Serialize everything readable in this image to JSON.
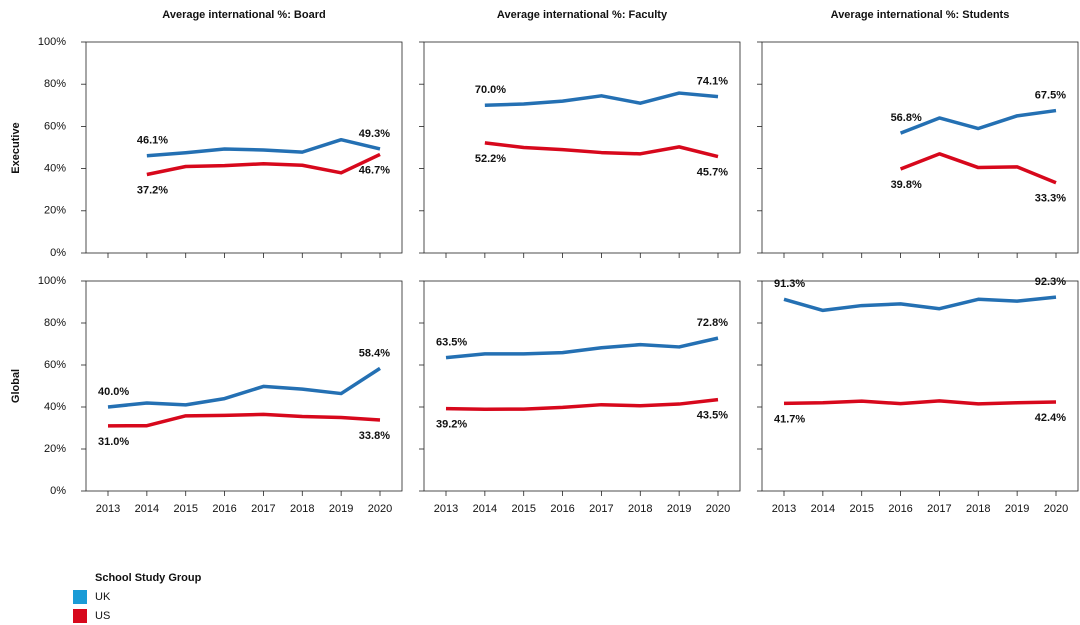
{
  "chart_data": [
    {
      "type": "line",
      "title": "Average international %: Board",
      "ylim": [
        0,
        100
      ],
      "yticks": [
        {
          "value": 0,
          "label": "0%"
        },
        {
          "value": 20,
          "label": "20%"
        },
        {
          "value": 40,
          "label": "40%"
        },
        {
          "value": 60,
          "label": "60%"
        },
        {
          "value": 80,
          "label": "80%"
        },
        {
          "value": 100,
          "label": "100%"
        }
      ],
      "series": [
        {
          "name": "UK",
          "color": "#2470b3",
          "values": [
            null,
            46.1,
            47.5,
            49.3,
            48.8,
            47.8,
            53.7,
            49.3
          ],
          "value_labels": [
            null,
            "46.1%",
            null,
            null,
            null,
            null,
            null,
            "49.3%"
          ]
        },
        {
          "name": "US",
          "color": "#d7081c",
          "values": [
            null,
            37.2,
            41.0,
            41.4,
            42.3,
            41.6,
            38.0,
            46.7
          ],
          "value_labels": [
            null,
            "37.2%",
            null,
            null,
            null,
            null,
            null,
            "46.7%"
          ]
        }
      ]
    },
    {
      "type": "line",
      "title": "Average international %: Faculty",
      "ylim": [
        0,
        100
      ],
      "series": [
        {
          "name": "UK",
          "color": "#2470b3",
          "values": [
            null,
            70.0,
            70.6,
            72.0,
            74.5,
            71.0,
            75.8,
            74.1
          ],
          "value_labels": [
            null,
            "70.0%",
            null,
            null,
            null,
            null,
            null,
            "74.1%"
          ]
        },
        {
          "name": "US",
          "color": "#d7081c",
          "values": [
            null,
            52.2,
            50.0,
            49.0,
            47.6,
            47.0,
            50.3,
            45.7
          ],
          "value_labels": [
            null,
            "52.2%",
            null,
            null,
            null,
            null,
            null,
            "45.7%"
          ]
        }
      ]
    },
    {
      "type": "line",
      "title": "Average international %: Students",
      "ylim": [
        0,
        100
      ],
      "series": [
        {
          "name": "UK",
          "color": "#2470b3",
          "values": [
            null,
            null,
            null,
            56.8,
            64.0,
            59.0,
            65.0,
            67.5
          ],
          "value_labels": [
            null,
            null,
            null,
            "56.8%",
            null,
            null,
            null,
            "67.5%"
          ]
        },
        {
          "name": "US",
          "color": "#d7081c",
          "values": [
            null,
            null,
            null,
            39.8,
            47.0,
            40.5,
            40.8,
            33.3
          ],
          "value_labels": [
            null,
            null,
            null,
            "39.8%",
            null,
            null,
            null,
            "33.3%"
          ]
        }
      ]
    },
    {
      "type": "line",
      "ylim": [
        0,
        100
      ],
      "yticks": [
        {
          "value": 0,
          "label": "0%"
        },
        {
          "value": 20,
          "label": "20%"
        },
        {
          "value": 40,
          "label": "40%"
        },
        {
          "value": 60,
          "label": "60%"
        },
        {
          "value": 80,
          "label": "80%"
        },
        {
          "value": 100,
          "label": "100%"
        }
      ],
      "categories": [
        "2013",
        "2014",
        "2015",
        "2016",
        "2017",
        "2018",
        "2019",
        "2020"
      ],
      "series": [
        {
          "name": "UK",
          "color": "#2470b3",
          "values": [
            40.0,
            41.9,
            41.0,
            44.0,
            49.8,
            48.5,
            46.4,
            58.4
          ],
          "value_labels": [
            "40.0%",
            null,
            null,
            null,
            null,
            null,
            null,
            "58.4%"
          ]
        },
        {
          "name": "US",
          "color": "#d7081c",
          "values": [
            31.0,
            31.1,
            35.8,
            36.0,
            36.5,
            35.5,
            35.0,
            33.8
          ],
          "value_labels": [
            "31.0%",
            null,
            null,
            null,
            null,
            null,
            null,
            "33.8%"
          ]
        }
      ]
    },
    {
      "type": "line",
      "ylim": [
        0,
        100
      ],
      "categories": [
        "2013",
        "2014",
        "2015",
        "2016",
        "2017",
        "2018",
        "2019",
        "2020"
      ],
      "series": [
        {
          "name": "UK",
          "color": "#2470b3",
          "values": [
            63.5,
            65.3,
            65.3,
            65.9,
            68.2,
            69.7,
            68.6,
            72.8
          ],
          "value_labels": [
            "63.5%",
            null,
            null,
            null,
            null,
            null,
            null,
            "72.8%"
          ]
        },
        {
          "name": "US",
          "color": "#d7081c",
          "values": [
            39.2,
            38.9,
            39.0,
            39.8,
            41.1,
            40.6,
            41.4,
            43.5
          ],
          "value_labels": [
            "39.2%",
            null,
            null,
            null,
            null,
            null,
            null,
            "43.5%"
          ]
        }
      ]
    },
    {
      "type": "line",
      "ylim": [
        0,
        100
      ],
      "categories": [
        "2013",
        "2014",
        "2015",
        "2016",
        "2017",
        "2018",
        "2019",
        "2020"
      ],
      "series": [
        {
          "name": "UK",
          "color": "#2470b3",
          "values": [
            91.3,
            86.0,
            88.3,
            89.1,
            86.8,
            91.3,
            90.4,
            92.3
          ],
          "value_labels": [
            "91.3%",
            null,
            null,
            null,
            null,
            null,
            null,
            "92.3%"
          ]
        },
        {
          "name": "US",
          "color": "#d7081c",
          "values": [
            41.7,
            42.0,
            42.8,
            41.6,
            42.9,
            41.5,
            42.0,
            42.4
          ],
          "value_labels": [
            "41.7%",
            null,
            null,
            null,
            null,
            null,
            null,
            "42.4%"
          ]
        }
      ]
    }
  ],
  "row_labels": [
    "Executive",
    "Global"
  ],
  "legend": {
    "title": "School Study Group",
    "colors": [
      "#1a9bd6",
      "#d7081c"
    ]
  }
}
